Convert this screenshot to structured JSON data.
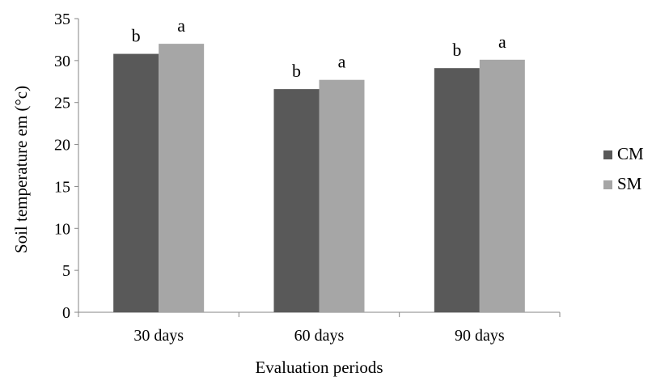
{
  "chart_data": {
    "type": "bar",
    "categories": [
      "30 days",
      "60 days",
      "90 days"
    ],
    "series": [
      {
        "name": "CM",
        "values": [
          30.8,
          26.6,
          29.1
        ],
        "labels": [
          "b",
          "b",
          "b"
        ],
        "color": "#595959"
      },
      {
        "name": "SM",
        "values": [
          32.0,
          27.7,
          30.1
        ],
        "labels": [
          "a",
          "a",
          "a"
        ],
        "color": "#a6a6a6"
      }
    ],
    "xlabel": "Evaluation periods",
    "ylabel": "Soil temperature em (°c)",
    "ylim": [
      0,
      35
    ],
    "yticks": [
      0,
      5,
      10,
      15,
      20,
      25,
      30,
      35
    ],
    "grid": false,
    "legend_position": "right"
  }
}
